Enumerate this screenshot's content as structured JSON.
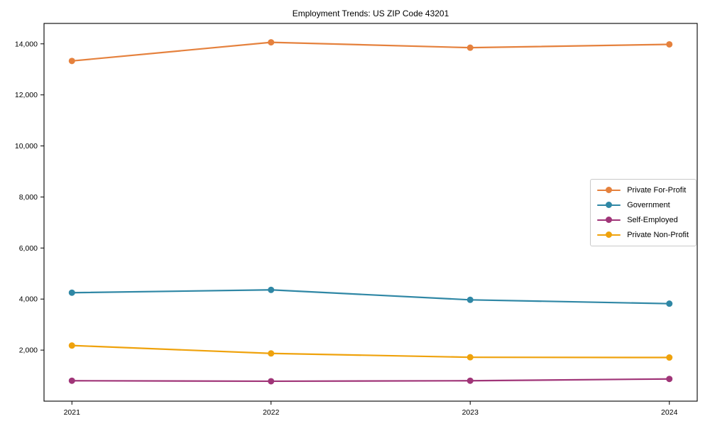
{
  "figure": {
    "background": "#ffffff",
    "text_color": "#000000",
    "spine_color": "#000000"
  },
  "chart_data": {
    "type": "line",
    "title": "Employment Trends: US ZIP Code 43201",
    "categories": [
      "2021",
      "2022",
      "2023",
      "2024"
    ],
    "x_values": [
      2021,
      2022,
      2023,
      2024
    ],
    "series": [
      {
        "name": "Private For-Profit",
        "color": "#e5813d",
        "values": [
          13330,
          14060,
          13850,
          13980
        ]
      },
      {
        "name": "Government",
        "color": "#2f87a5",
        "values": [
          4250,
          4360,
          3970,
          3820
        ]
      },
      {
        "name": "Self-Employed",
        "color": "#a03578",
        "values": [
          800,
          780,
          800,
          870
        ]
      },
      {
        "name": "Private Non-Profit",
        "color": "#efa20c",
        "values": [
          2180,
          1870,
          1720,
          1710
        ]
      }
    ],
    "xlabel": "",
    "ylabel": "",
    "xlim": [
      2020.86,
      2024.14
    ],
    "ylim": [
      0,
      14800
    ],
    "yticks": [
      2000,
      4000,
      6000,
      8000,
      10000,
      12000,
      14000
    ],
    "ytick_labels": [
      "2,000",
      "4,000",
      "6,000",
      "8,000",
      "10,000",
      "12,000",
      "14,000"
    ],
    "grid": false,
    "legend": {
      "position": "center-right"
    }
  }
}
